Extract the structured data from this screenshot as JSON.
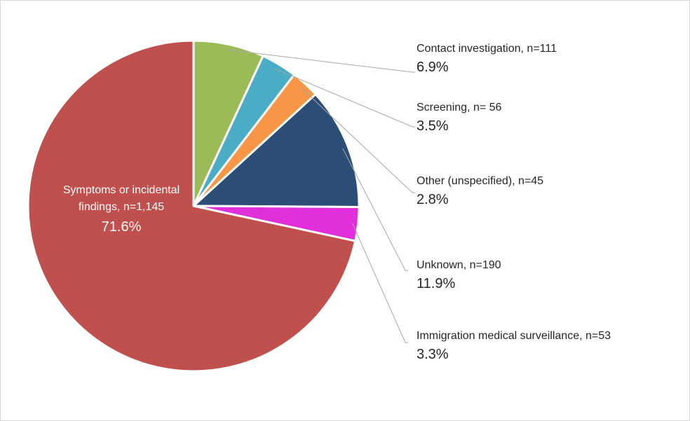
{
  "chart_data": {
    "type": "pie",
    "title": "",
    "start_angle_deg": 90,
    "direction": "clockwise",
    "slices": [
      {
        "label": "Contact investigation, n=111",
        "label_lines": [
          "Contact investigation, n=111"
        ],
        "count": 111,
        "percent_label": "6.9%",
        "value": 6.9,
        "color": "#9BBB59"
      },
      {
        "label": "Screening, n= 56",
        "label_lines": [
          "Screening, n= 56"
        ],
        "count": 56,
        "percent_label": "3.5%",
        "value": 3.5,
        "color": "#4BACC6"
      },
      {
        "label": "Other (unspecified), n=45",
        "label_lines": [
          "Other (unspecified), n=45"
        ],
        "count": 45,
        "percent_label": "2.8%",
        "value": 2.8,
        "color": "#F79646"
      },
      {
        "label": "Unknown, n=190",
        "label_lines": [
          "Unknown, n=190"
        ],
        "count": 190,
        "percent_label": "11.9%",
        "value": 11.9,
        "color": "#2C4D75"
      },
      {
        "label": "Immigration medical surveillance, n=53",
        "label_lines": [
          "Immigration medical surveillance, n=53"
        ],
        "count": 53,
        "percent_label": "3.3%",
        "value": 3.3,
        "color": "#E12FDB"
      },
      {
        "label": "Symptoms or incidental findings, n=1,145",
        "label_lines": [
          "Symptoms or incidental",
          "findings, n=1,145"
        ],
        "count": 1145,
        "percent_label": "71.6%",
        "value": 71.6,
        "color": "#C0504D"
      }
    ]
  }
}
